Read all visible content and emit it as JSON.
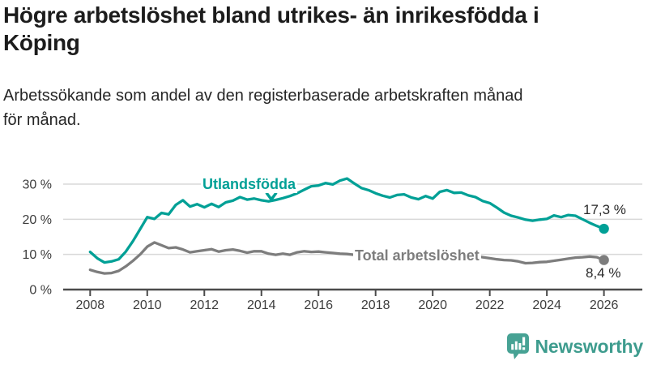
{
  "header": {
    "title_lines": [
      "Högre arbetslöshet bland utrikes- än inrikesfödda i",
      "Köping"
    ],
    "subtitle_lines": [
      "Arbetssökande som andel av den registerbaserade arbetskraften månad",
      "för månad."
    ]
  },
  "chart_data": {
    "type": "line",
    "title": "Högre arbetslöshet bland utrikes- än inrikesfödda i Köping",
    "subtitle": "Arbetssökande som andel av den registerbaserade arbetskraften månad för månad.",
    "grid": true,
    "legend_position": "inline-annotations",
    "x_axis": {
      "tick_years": [
        2008,
        2010,
        2012,
        2014,
        2016,
        2018,
        2020,
        2022,
        2024,
        2026
      ],
      "range": [
        2007.6,
        2027.3
      ]
    },
    "y_axis": {
      "tick_labels": [
        "0 %",
        "10 %",
        "20 %",
        "30 %"
      ],
      "tick_values": [
        0,
        10,
        20,
        30
      ],
      "range": [
        0,
        33
      ],
      "unit": "%"
    },
    "x_encoding": {
      "start": 2008,
      "step_years": 0.25,
      "note": "decimal years, quarterly samples read from monthly curve"
    },
    "series": [
      {
        "name": "Total arbetslöshet",
        "color": "#7d7d7d",
        "end_label": "8,4 %",
        "end_value": 8.4,
        "values": [
          5.6,
          5.0,
          4.6,
          4.7,
          5.3,
          6.6,
          8.2,
          10.0,
          12.2,
          13.4,
          12.6,
          11.8,
          12.0,
          11.4,
          10.6,
          10.9,
          11.2,
          11.5,
          10.8,
          11.2,
          11.4,
          11.0,
          10.5,
          10.9,
          10.9,
          10.2,
          9.9,
          10.2,
          9.9,
          10.6,
          10.9,
          10.7,
          10.8,
          10.6,
          10.4,
          10.2,
          10.1,
          9.9,
          9.7,
          9.5,
          9.3,
          9.1,
          9.0,
          8.9,
          8.8,
          8.7,
          8.8,
          9.1,
          9.5,
          10.2,
          10.4,
          10.2,
          10.1,
          9.9,
          9.5,
          9.2,
          8.9,
          8.6,
          8.4,
          8.3,
          8.0,
          7.5,
          7.6,
          7.8,
          7.9,
          8.2,
          8.5,
          8.8,
          9.1,
          9.2,
          9.4,
          9.2,
          8.4
        ]
      },
      {
        "name": "Utlandsfödda",
        "color": "#00a096",
        "end_label": "17,3 %",
        "end_value": 17.3,
        "values": [
          10.7,
          8.9,
          7.7,
          8.0,
          8.6,
          10.8,
          13.8,
          17.2,
          20.6,
          20.1,
          21.8,
          21.4,
          24.1,
          25.4,
          23.6,
          24.3,
          23.4,
          24.4,
          23.5,
          24.8,
          25.3,
          26.3,
          25.6,
          25.9,
          25.4,
          25.1,
          25.5,
          26.0,
          26.6,
          27.4,
          28.4,
          29.4,
          29.6,
          30.3,
          29.9,
          31.0,
          31.6,
          30.2,
          28.9,
          28.3,
          27.4,
          26.7,
          26.2,
          26.9,
          27.1,
          26.2,
          25.7,
          26.6,
          25.9,
          27.8,
          28.3,
          27.5,
          27.6,
          26.8,
          26.3,
          25.2,
          24.6,
          23.3,
          21.9,
          21.0,
          20.5,
          19.9,
          19.6,
          19.9,
          20.1,
          21.1,
          20.6,
          21.2,
          21.0,
          20.0,
          19.0,
          18.1,
          17.3
        ]
      }
    ],
    "colors": {
      "gridline": "#d9d9d9",
      "axis": "#4b4b4b",
      "tick_text": "#3d3d3d"
    }
  },
  "footer": {
    "brand": "Newsworthy",
    "logo_icon": "bar-chart-speech-bubble-icon",
    "brand_color": "#3e9c8e",
    "icon_color": "#47a294"
  }
}
